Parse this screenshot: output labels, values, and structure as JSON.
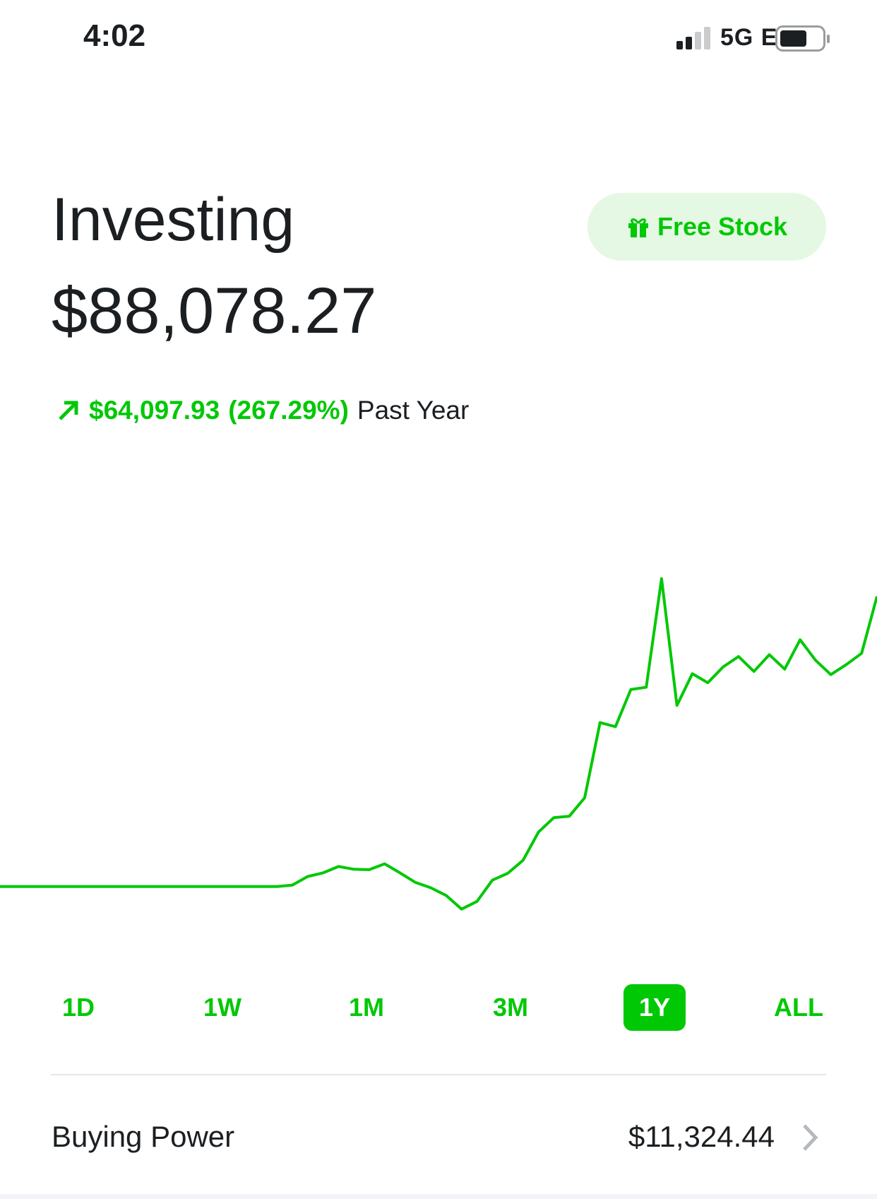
{
  "status_bar": {
    "time": "4:02",
    "network": "5G E"
  },
  "header": {
    "title": "Investing",
    "value": "$88,078.27",
    "free_stock": "Free Stock"
  },
  "change": {
    "amount": "$64,097.93",
    "percent": "(267.29%)",
    "period": "Past Year"
  },
  "chart_data": {
    "type": "line",
    "color": "#00c805",
    "ylim": [
      8800,
      115100
    ],
    "values": [
      23980,
      23980,
      23980,
      23980,
      23980,
      23980,
      23980,
      23980,
      23980,
      23980,
      23980,
      23980,
      23980,
      23980,
      23980,
      23980,
      23980,
      23980,
      23980,
      24300,
      26200,
      27000,
      28400,
      27800,
      27700,
      29000,
      27000,
      24900,
      23700,
      22000,
      19000,
      20700,
      25400,
      26900,
      29800,
      36000,
      39200,
      39500,
      43600,
      60200,
      59300,
      67500,
      68000,
      92000,
      64000,
      71000,
      69000,
      72500,
      74800,
      71500,
      75200,
      72000,
      78500,
      74000,
      70800,
      73000,
      75500,
      88078.27
    ]
  },
  "range_buttons": [
    "1D",
    "1W",
    "1M",
    "3M",
    "1Y",
    "ALL"
  ],
  "selected_range": "1Y",
  "buying_power": {
    "label": "Buying Power",
    "value": "$11,324.44"
  }
}
